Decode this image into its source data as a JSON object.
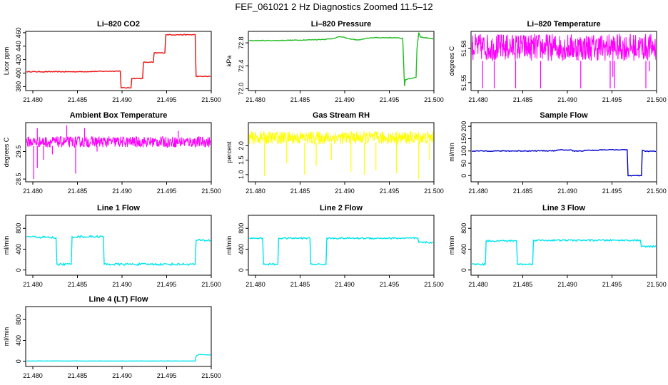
{
  "figure_title": "FEF_061021  2 Hz Diagnostics Zoomed 11.5–12",
  "chart_data": [
    {
      "type": "line",
      "title": "Li–820 CO2",
      "ylabel": "Licor ppm",
      "color": "#ee1111",
      "xlim": [
        21.4792,
        21.5
      ],
      "ylim": [
        374,
        462
      ],
      "x_ticks": [
        "21.480",
        "21.485",
        "21.490",
        "21.495",
        "21.500"
      ],
      "y_ticks": [
        {
          "v": 380,
          "label": "380"
        },
        {
          "v": 400,
          "label": "400"
        },
        {
          "v": 420,
          "label": "420"
        },
        {
          "v": 440,
          "label": "440"
        },
        {
          "v": 460,
          "label": "460"
        }
      ],
      "series": [
        {
          "x": [
            21.4793,
            21.481,
            21.485,
            21.4898,
            21.4899,
            21.491,
            21.4911,
            21.4923,
            21.4924,
            21.4935,
            21.4936,
            21.4948,
            21.4949,
            21.4982,
            21.4983,
            21.5
          ],
          "y": [
            402,
            402,
            402,
            403,
            378,
            378,
            392,
            392,
            416,
            416,
            430,
            430,
            457,
            457,
            395,
            395
          ],
          "noise": 0.6
        }
      ],
      "spikes": []
    },
    {
      "type": "line",
      "title": "Li–820 Pressure",
      "ylabel": "kPa",
      "color": "#22bb22",
      "xlim": [
        21.4792,
        21.5
      ],
      "ylim": [
        71.97,
        73.0
      ],
      "x_ticks": [
        "21.480",
        "21.485",
        "21.490",
        "21.495",
        "21.500"
      ],
      "y_ticks": [
        {
          "v": 72.0,
          "label": "72.0"
        },
        {
          "v": 72.4,
          "label": "72.4"
        },
        {
          "v": 72.8,
          "label": "72.8"
        }
      ],
      "series": [
        {
          "x": [
            21.4793,
            21.482,
            21.4855,
            21.4875,
            21.4885,
            21.4895,
            21.4905,
            21.4915,
            21.493,
            21.4955,
            21.4965,
            21.4967,
            21.4968,
            21.498,
            21.4981,
            21.4983,
            21.4985,
            21.5
          ],
          "y": [
            72.84,
            72.84,
            72.85,
            72.86,
            72.87,
            72.91,
            72.87,
            72.85,
            72.89,
            72.89,
            72.88,
            72.05,
            72.16,
            72.2,
            72.7,
            72.98,
            72.9,
            72.87
          ],
          "noise": 0.006
        }
      ],
      "spikes": []
    },
    {
      "type": "line",
      "title": "Li–820 Temperature",
      "ylabel": "degrees C",
      "color": "#ff00ff",
      "xlim": [
        21.4792,
        21.5
      ],
      "ylim": [
        51.543,
        51.595
      ],
      "x_ticks": [
        "21.480",
        "21.485",
        "21.490",
        "21.495",
        "21.500"
      ],
      "y_ticks": [
        {
          "v": 51.55,
          "label": "51.55"
        },
        {
          "v": 51.58,
          "label": "51.58"
        }
      ],
      "series": [],
      "band": {
        "x0": 21.4793,
        "x1": 21.5,
        "y0": 51.569,
        "y1": 51.593
      },
      "spikes": [
        {
          "x": 21.4805,
          "y0": 51.569,
          "y1": 51.545
        },
        {
          "x": 21.4818,
          "y0": 51.569,
          "y1": 51.545
        },
        {
          "x": 21.4842,
          "y0": 51.569,
          "y1": 51.545
        },
        {
          "x": 21.487,
          "y0": 51.569,
          "y1": 51.545
        },
        {
          "x": 21.4915,
          "y0": 51.569,
          "y1": 51.545
        },
        {
          "x": 21.4948,
          "y0": 51.569,
          "y1": 51.545
        },
        {
          "x": 21.4951,
          "y0": 51.569,
          "y1": 51.555
        },
        {
          "x": 21.4953,
          "y0": 51.569,
          "y1": 51.545
        },
        {
          "x": 21.4988,
          "y0": 51.569,
          "y1": 51.545
        },
        {
          "x": 21.4992,
          "y0": 51.569,
          "y1": 51.56
        }
      ]
    },
    {
      "type": "line",
      "title": "Ambient Box Temperature",
      "ylabel": "degrees C",
      "color": "#ff00ff",
      "xlim": [
        21.4792,
        21.5
      ],
      "ylim": [
        28.4,
        30.55
      ],
      "x_ticks": [
        "21.480",
        "21.485",
        "21.490",
        "21.495",
        "21.500"
      ],
      "y_ticks": [
        {
          "v": 28.5,
          "label": "28.5"
        },
        {
          "v": 29.5,
          "label": "29.5"
        }
      ],
      "series": [],
      "band": {
        "x0": 21.4793,
        "x1": 21.5,
        "y0": 29.65,
        "y1": 30.05
      },
      "spikes": [
        {
          "x": 21.4801,
          "y0": 29.7,
          "y1": 28.5
        },
        {
          "x": 21.4805,
          "y0": 29.7,
          "y1": 28.9
        },
        {
          "x": 21.4812,
          "y0": 29.7,
          "y1": 29.2
        },
        {
          "x": 21.4822,
          "y0": 29.7,
          "y1": 29.4
        },
        {
          "x": 21.4848,
          "y0": 29.7,
          "y1": 28.7
        },
        {
          "x": 21.4872,
          "y0": 29.7,
          "y1": 29.5
        },
        {
          "x": 21.4805,
          "y0": 30.0,
          "y1": 30.35
        },
        {
          "x": 21.4838,
          "y0": 30.0,
          "y1": 30.45
        },
        {
          "x": 21.4858,
          "y0": 30.0,
          "y1": 30.35
        },
        {
          "x": 21.4963,
          "y0": 30.0,
          "y1": 30.25
        }
      ]
    },
    {
      "type": "line",
      "title": "Gas Stream RH",
      "ylabel": "percent",
      "color": "#ffff00",
      "xlim": [
        21.4792,
        21.5
      ],
      "ylim": [
        0.75,
        2.8
      ],
      "x_ticks": [
        "21.480",
        "21.485",
        "21.490",
        "21.495",
        "21.500"
      ],
      "y_ticks": [
        {
          "v": 1.0,
          "label": "1.0"
        },
        {
          "v": 1.5,
          "label": "1.5"
        },
        {
          "v": 2.0,
          "label": "2.0"
        }
      ],
      "series": [],
      "band": {
        "x0": 21.4793,
        "x1": 21.5,
        "y0": 2.05,
        "y1": 2.5
      },
      "spikes": [
        {
          "x": 21.481,
          "y0": 2.1,
          "y1": 0.95
        },
        {
          "x": 21.4835,
          "y0": 2.1,
          "y1": 1.4
        },
        {
          "x": 21.4855,
          "y0": 2.1,
          "y1": 1.0
        },
        {
          "x": 21.4868,
          "y0": 2.1,
          "y1": 1.3
        },
        {
          "x": 21.4885,
          "y0": 2.1,
          "y1": 1.5
        },
        {
          "x": 21.4907,
          "y0": 2.1,
          "y1": 1.1
        },
        {
          "x": 21.4922,
          "y0": 2.1,
          "y1": 1.0
        },
        {
          "x": 21.4935,
          "y0": 2.1,
          "y1": 1.15
        },
        {
          "x": 21.4958,
          "y0": 2.1,
          "y1": 1.05
        },
        {
          "x": 21.4983,
          "y0": 2.1,
          "y1": 0.85
        },
        {
          "x": 21.4995,
          "y0": 2.1,
          "y1": 1.5
        }
      ]
    },
    {
      "type": "line",
      "title": "Sample Flow",
      "ylabel": "ml/min",
      "color": "#0000cc",
      "xlim": [
        21.4792,
        21.5
      ],
      "ylim": [
        -25,
        215
      ],
      "x_ticks": [
        "21.480",
        "21.485",
        "21.490",
        "21.495",
        "21.500"
      ],
      "y_ticks": [
        {
          "v": 0,
          "label": "0"
        },
        {
          "v": 50,
          "label": "50"
        },
        {
          "v": 100,
          "label": "100"
        },
        {
          "v": 150,
          "label": "150"
        },
        {
          "v": 200,
          "label": "200"
        }
      ],
      "series": [
        {
          "x": [
            21.4793,
            21.484,
            21.4888,
            21.4889,
            21.4905,
            21.4906,
            21.4918,
            21.4919,
            21.4935,
            21.4936,
            21.4967,
            21.4968,
            21.4983,
            21.4984,
            21.4987,
            21.5
          ],
          "y": [
            100,
            100,
            101,
            104,
            104,
            100,
            100,
            103,
            103,
            105,
            105,
            0,
            0,
            103,
            99,
            99
          ],
          "noise": 1.5
        }
      ],
      "spikes": []
    },
    {
      "type": "line",
      "title": "Line 1 Flow",
      "ylabel": "ml/min",
      "color": "#00e5ee",
      "xlim": [
        21.4792,
        21.5
      ],
      "ylim": [
        -100,
        1050
      ],
      "x_ticks": [
        "21.480",
        "21.485",
        "21.490",
        "21.495",
        "21.500"
      ],
      "y_ticks": [
        {
          "v": 0,
          "label": "0"
        },
        {
          "v": 400,
          "label": "400"
        },
        {
          "v": 800,
          "label": "800"
        }
      ],
      "series": [
        {
          "x": [
            21.4793,
            21.4826,
            21.4827,
            21.4843,
            21.4844,
            21.4879,
            21.488,
            21.4982,
            21.4983,
            21.5
          ],
          "y": [
            640,
            620,
            110,
            110,
            640,
            640,
            110,
            110,
            570,
            570
          ],
          "noise": 20
        }
      ],
      "spikes": []
    },
    {
      "type": "line",
      "title": "Line 2 Flow",
      "ylabel": "ml/min",
      "color": "#00e5ee",
      "xlim": [
        21.4792,
        21.5
      ],
      "ylim": [
        -100,
        1050
      ],
      "x_ticks": [
        "21.480",
        "21.485",
        "21.490",
        "21.495",
        "21.500"
      ],
      "y_ticks": [
        {
          "v": 0,
          "label": "0"
        },
        {
          "v": 400,
          "label": "400"
        },
        {
          "v": 800,
          "label": "800"
        }
      ],
      "series": [
        {
          "x": [
            21.4793,
            21.4808,
            21.4809,
            21.4825,
            21.4826,
            21.4861,
            21.4862,
            21.4879,
            21.488,
            21.4982,
            21.4983,
            21.5
          ],
          "y": [
            610,
            610,
            110,
            110,
            610,
            610,
            110,
            110,
            610,
            610,
            530,
            530
          ],
          "noise": 15
        }
      ],
      "spikes": []
    },
    {
      "type": "line",
      "title": "Line 3 Flow",
      "ylabel": "ml/min",
      "color": "#00e5ee",
      "xlim": [
        21.4792,
        21.5
      ],
      "ylim": [
        -100,
        1050
      ],
      "x_ticks": [
        "21.480",
        "21.485",
        "21.490",
        "21.495",
        "21.500"
      ],
      "y_ticks": [
        {
          "v": 0,
          "label": "0"
        },
        {
          "v": 400,
          "label": "400"
        },
        {
          "v": 800,
          "label": "800"
        }
      ],
      "series": [
        {
          "x": [
            21.4793,
            21.4808,
            21.4809,
            21.4843,
            21.4844,
            21.4861,
            21.4862,
            21.4982,
            21.4983,
            21.5
          ],
          "y": [
            110,
            110,
            560,
            560,
            110,
            110,
            570,
            570,
            450,
            450
          ],
          "noise": 15
        }
      ],
      "spikes": []
    },
    {
      "type": "line",
      "title": "Line 4 (LT) Flow",
      "ylabel": "ml/min",
      "color": "#00e5ee",
      "xlim": [
        21.4792,
        21.5
      ],
      "ylim": [
        -100,
        1050
      ],
      "x_ticks": [
        "21.480",
        "21.485",
        "21.490",
        "21.495",
        "21.500"
      ],
      "y_ticks": [
        {
          "v": 0,
          "label": "0"
        },
        {
          "v": 400,
          "label": "400"
        },
        {
          "v": 800,
          "label": "800"
        }
      ],
      "series": [
        {
          "x": [
            21.4793,
            21.4982,
            21.4983,
            21.4986,
            21.5
          ],
          "y": [
            5,
            5,
            100,
            130,
            120
          ],
          "noise": 2
        }
      ],
      "spikes": []
    }
  ]
}
